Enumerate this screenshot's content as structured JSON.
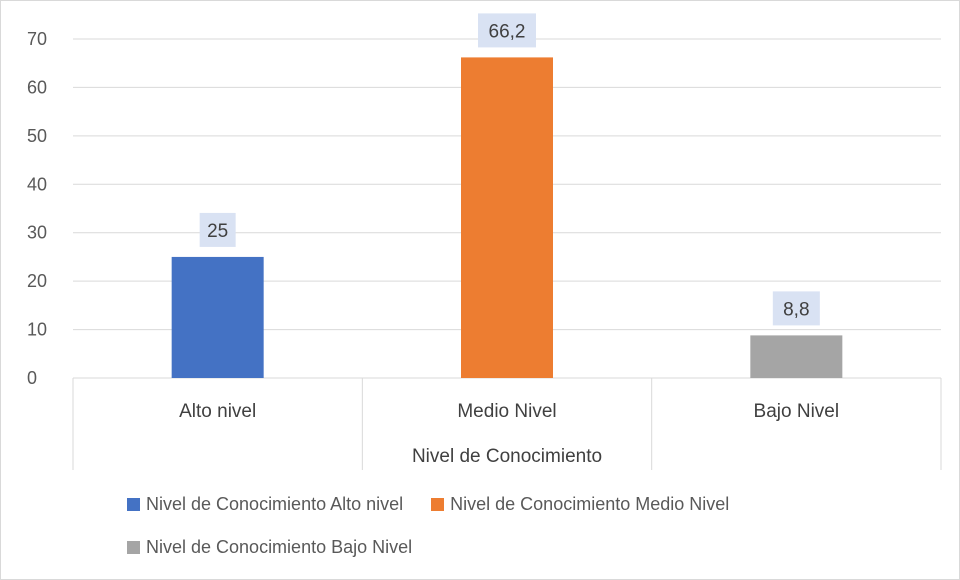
{
  "chart_data": {
    "type": "bar",
    "title": "",
    "xlabel": "Nivel de Conocimiento",
    "ylabel": "",
    "ylim": [
      0,
      70
    ],
    "yticks": [
      0,
      10,
      20,
      30,
      40,
      50,
      60,
      70
    ],
    "grid": true,
    "legend_position": "bottom",
    "categories": [
      "Alto nivel",
      "Medio Nivel",
      "Bajo Nivel"
    ],
    "series": [
      {
        "name": "Nivel de Conocimiento Alto nivel",
        "category": "Alto nivel",
        "value": 25,
        "label": "25",
        "color": "#4472C4"
      },
      {
        "name": "Nivel de Conocimiento Medio Nivel",
        "category": "Medio Nivel",
        "value": 66.2,
        "label": "66,2",
        "color": "#ED7D31"
      },
      {
        "name": "Nivel de Conocimiento Bajo Nivel",
        "category": "Bajo Nivel",
        "value": 8.8,
        "label": "8,8",
        "color": "#A5A5A5"
      }
    ],
    "data_label_background": "#D9E2F3"
  }
}
